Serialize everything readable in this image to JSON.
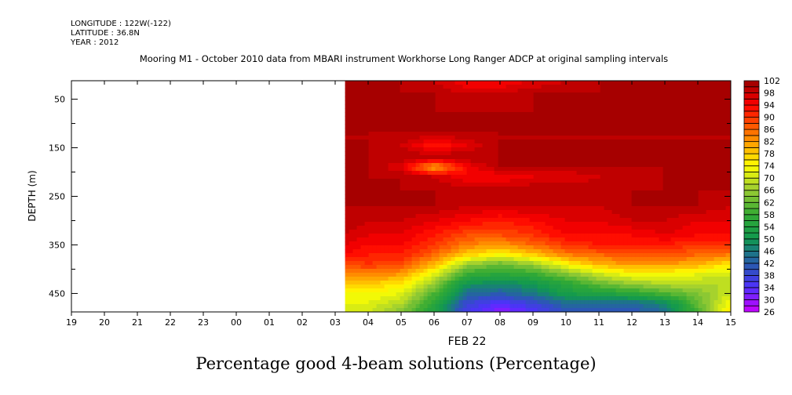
{
  "header": {
    "longitude": "LONGITUDE : 122W(-122)",
    "latitude": "LATITUDE : 36.8N",
    "year": "YEAR : 2012"
  },
  "chart_data": {
    "type": "heatmap",
    "title": "Mooring M1 - October 2010 data from MBARI instrument Workhorse Long Ranger ADCP at original sampling intervals",
    "bottom_title": "Percentage good 4-beam solutions (Percentage)",
    "xlabel": "FEB 22",
    "ylabel": "DEPTH (m)",
    "xlim": [
      0,
      20
    ],
    "x_tick_labels": [
      "19",
      "20",
      "21",
      "22",
      "23",
      "00",
      "01",
      "02",
      "03",
      "04",
      "05",
      "06",
      "07",
      "08",
      "09",
      "10",
      "11",
      "12",
      "13",
      "14",
      "15"
    ],
    "ylim": [
      12,
      488
    ],
    "y_ticks": [
      50,
      150,
      250,
      350,
      450
    ],
    "y_tick_labels": [
      "50",
      "150",
      "250",
      "350",
      "450"
    ],
    "colorbar": {
      "min": 26,
      "max": 102,
      "step": 2,
      "labels": [
        "102",
        "98",
        "94",
        "90",
        "86",
        "82",
        "78",
        "74",
        "70",
        "66",
        "62",
        "58",
        "54",
        "50",
        "46",
        "42",
        "38",
        "34",
        "30",
        "26"
      ],
      "stops": [
        [
          26,
          "#cc00ff"
        ],
        [
          34,
          "#5030ff"
        ],
        [
          40,
          "#3050c0"
        ],
        [
          46,
          "#1a7a80"
        ],
        [
          50,
          "#11994f"
        ],
        [
          58,
          "#33aa33"
        ],
        [
          66,
          "#99cc33"
        ],
        [
          74,
          "#ffff00"
        ],
        [
          82,
          "#ff9900"
        ],
        [
          94,
          "#ff0000"
        ],
        [
          102,
          "#990000"
        ]
      ]
    },
    "x_hours_from_19h": [
      8.3,
      9,
      10,
      11,
      12,
      13,
      14,
      15,
      16,
      17,
      18,
      19,
      20
    ],
    "depths": [
      12,
      40,
      80,
      120,
      145,
      170,
      190,
      210,
      240,
      270,
      300,
      330,
      350,
      370,
      390,
      410,
      430,
      450,
      470,
      488
    ],
    "values": [
      [
        100,
        100,
        100,
        98,
        94,
        94,
        96,
        98,
        100,
        100,
        100,
        100,
        100
      ],
      [
        100,
        100,
        100,
        100,
        98,
        98,
        100,
        100,
        100,
        100,
        100,
        100,
        100
      ],
      [
        100,
        100,
        100,
        100,
        100,
        100,
        100,
        100,
        100,
        100,
        100,
        100,
        100
      ],
      [
        100,
        100,
        100,
        100,
        100,
        100,
        100,
        100,
        100,
        100,
        100,
        100,
        100
      ],
      [
        100,
        100,
        98,
        92,
        96,
        100,
        100,
        100,
        100,
        100,
        100,
        100,
        100
      ],
      [
        100,
        100,
        100,
        100,
        100,
        100,
        100,
        100,
        100,
        100,
        100,
        100,
        100
      ],
      [
        100,
        100,
        96,
        80,
        94,
        100,
        100,
        100,
        100,
        100,
        100,
        100,
        100
      ],
      [
        100,
        100,
        100,
        98,
        94,
        94,
        96,
        96,
        98,
        98,
        100,
        100,
        100
      ],
      [
        100,
        100,
        100,
        100,
        100,
        100,
        100,
        100,
        100,
        100,
        100,
        100,
        100
      ],
      [
        100,
        100,
        100,
        100,
        98,
        98,
        98,
        98,
        98,
        100,
        100,
        100,
        98
      ],
      [
        100,
        98,
        98,
        96,
        94,
        92,
        94,
        96,
        96,
        98,
        98,
        96,
        96
      ],
      [
        98,
        96,
        96,
        92,
        88,
        88,
        90,
        94,
        94,
        94,
        96,
        94,
        94
      ],
      [
        96,
        94,
        94,
        90,
        84,
        82,
        86,
        90,
        92,
        92,
        92,
        90,
        90
      ],
      [
        94,
        92,
        92,
        86,
        78,
        74,
        78,
        84,
        86,
        88,
        88,
        86,
        84
      ],
      [
        88,
        90,
        88,
        80,
        66,
        62,
        66,
        74,
        80,
        82,
        82,
        80,
        76
      ],
      [
        84,
        84,
        82,
        72,
        58,
        56,
        58,
        64,
        70,
        74,
        74,
        72,
        70
      ],
      [
        78,
        78,
        76,
        66,
        50,
        48,
        50,
        56,
        62,
        66,
        68,
        68,
        68
      ],
      [
        74,
        74,
        72,
        60,
        44,
        42,
        46,
        52,
        54,
        56,
        60,
        64,
        70
      ],
      [
        72,
        72,
        68,
        56,
        38,
        34,
        38,
        44,
        44,
        44,
        48,
        62,
        74
      ],
      [
        72,
        70,
        64,
        54,
        36,
        30,
        34,
        40,
        40,
        40,
        44,
        60,
        76
      ]
    ]
  }
}
